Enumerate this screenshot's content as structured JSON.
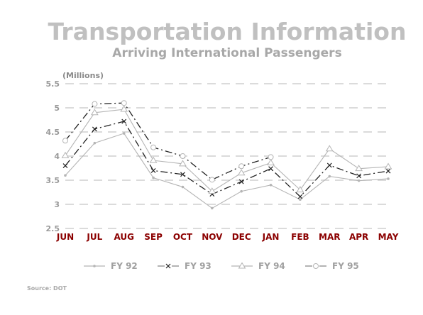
{
  "chart_data": {
    "type": "line",
    "title": "Transportation Information",
    "subtitle": "Arriving International Passengers",
    "ylabel": "(Millions)",
    "categories": [
      "JUN",
      "JUL",
      "AUG",
      "SEP",
      "OCT",
      "NOV",
      "DEC",
      "JAN",
      "FEB",
      "MAR",
      "APR",
      "MAY"
    ],
    "ylim": [
      2.5,
      5.5
    ],
    "yticks": [
      "2.5",
      "3",
      "3.5",
      "4",
      "4.5",
      "5",
      "5.5"
    ],
    "grid": true,
    "legend_position": "bottom",
    "source": "Source: DOT",
    "colors": {
      "title": "#c0c0c0",
      "xtick": "#8b0000",
      "grid": "#cfcfcf",
      "series_light": "#b5b5b5",
      "series_dark": "#222222"
    },
    "series": [
      {
        "name": "FY 92",
        "marker": "dot",
        "style": "solid",
        "color": "#b5b5b5",
        "values": [
          3.6,
          4.27,
          4.47,
          3.55,
          3.36,
          2.92,
          3.27,
          3.4,
          3.1,
          3.58,
          3.49,
          3.53
        ]
      },
      {
        "name": "FY 93",
        "marker": "x",
        "style": "dashdot",
        "color": "#222222",
        "values": [
          3.8,
          4.56,
          4.72,
          3.7,
          3.62,
          3.21,
          3.47,
          3.74,
          3.16,
          3.81,
          3.59,
          3.69
        ]
      },
      {
        "name": "FY 94",
        "marker": "triangle",
        "style": "solid",
        "color": "#b5b5b5",
        "values": [
          4.01,
          4.9,
          4.97,
          3.91,
          3.84,
          3.27,
          3.65,
          3.86,
          3.3,
          4.15,
          3.74,
          3.78
        ]
      },
      {
        "name": "FY 95",
        "marker": "circle",
        "style": "dashdot",
        "color": "#222222",
        "values": [
          4.32,
          5.08,
          5.1,
          4.18,
          4.0,
          3.51,
          3.79,
          3.98,
          null,
          null,
          null,
          null
        ]
      }
    ]
  }
}
